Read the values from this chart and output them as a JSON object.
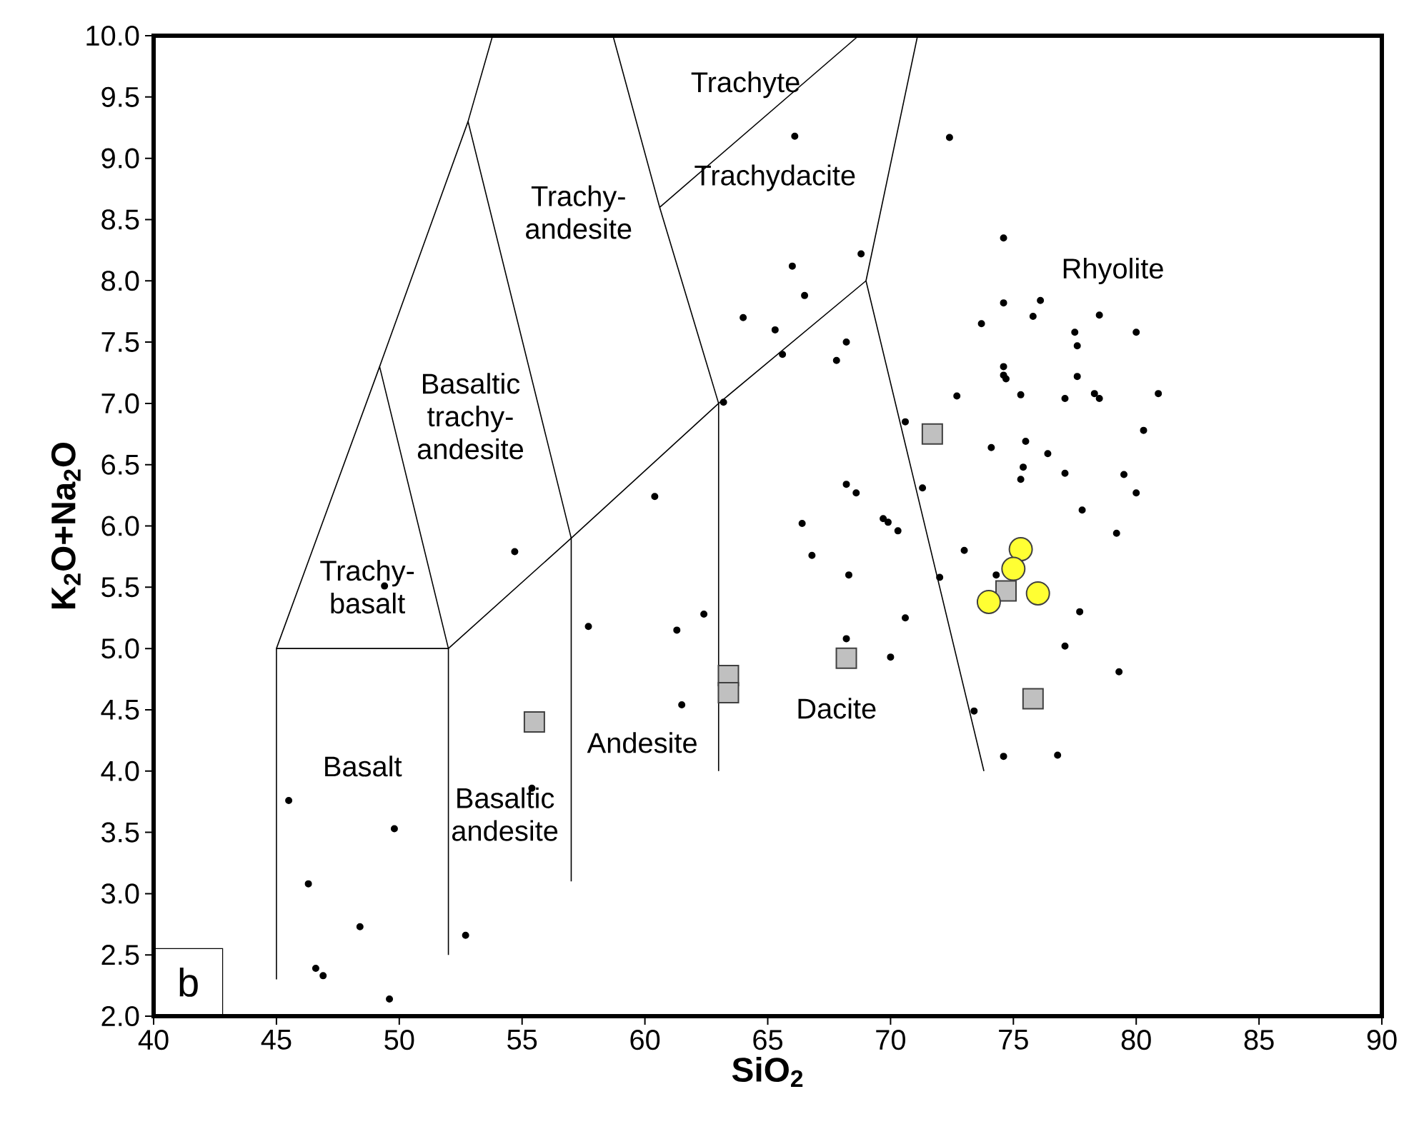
{
  "chart_data": {
    "type": "scatter",
    "xlabel": "SiO$_{2}$",
    "ylabel": "K$_{2}$O+Na$_{2}$O",
    "xlim": [
      40,
      90
    ],
    "ylim": [
      2,
      10
    ],
    "xticks": [
      40,
      45,
      50,
      55,
      60,
      65,
      70,
      75,
      80,
      85,
      90
    ],
    "yticks": [
      {
        "value": 2,
        "label": "2.0"
      },
      {
        "value": 2.5,
        "label": "2.5"
      },
      {
        "value": 3,
        "label": "3.0"
      },
      {
        "value": 3.5,
        "label": "3.5"
      },
      {
        "value": 4,
        "label": "4.0"
      },
      {
        "value": 4.5,
        "label": "4.5"
      },
      {
        "value": 5,
        "label": "5.0"
      },
      {
        "value": 5.5,
        "label": "5.5"
      },
      {
        "value": 6,
        "label": "6.0"
      },
      {
        "value": 6.5,
        "label": "6.5"
      },
      {
        "value": 7,
        "label": "7.0"
      },
      {
        "value": 7.5,
        "label": "7.5"
      },
      {
        "value": 8,
        "label": "8.0"
      },
      {
        "value": 8.5,
        "label": "8.5"
      },
      {
        "value": 9,
        "label": "9.0"
      },
      {
        "value": 9.5,
        "label": "9.5"
      },
      {
        "value": 10,
        "label": "10.0"
      }
    ],
    "grid": false,
    "series": [
      {
        "type": "line",
        "color": "#000000",
        "marker": "none",
        "line_style": "solid",
        "x": [
          45,
          45,
          52,
          52
        ],
        "values": [
          2.3,
          5,
          5,
          2.5
        ]
      },
      {
        "type": "line",
        "color": "#000000",
        "marker": "none",
        "line_style": "solid",
        "x": [
          45,
          49.2,
          52.8,
          53.8
        ],
        "values": [
          5,
          7.3,
          9.3,
          10
        ]
      },
      {
        "type": "line",
        "color": "#000000",
        "marker": "none",
        "line_style": "solid",
        "x": [
          49.2,
          52,
          57,
          63,
          69,
          73.8
        ],
        "values": [
          7.3,
          5,
          5.9,
          7,
          8,
          4
        ]
      },
      {
        "type": "line",
        "color": "#000000",
        "marker": "none",
        "line_style": "solid",
        "x": [
          52.8,
          57,
          57
        ],
        "values": [
          9.3,
          5.9,
          3.1
        ]
      },
      {
        "type": "line",
        "color": "#000000",
        "marker": "none",
        "line_style": "solid",
        "x": [
          58.7,
          60.6,
          63,
          63
        ],
        "values": [
          10,
          8.6,
          7,
          4
        ]
      },
      {
        "type": "line",
        "color": "#000000",
        "marker": "none",
        "line_style": "solid",
        "x": [
          60.6,
          68.7
        ],
        "values": [
          8.6,
          10
        ]
      },
      {
        "type": "line",
        "color": "#000000",
        "marker": "none",
        "line_style": "solid",
        "x": [
          71.1,
          69
        ],
        "values": [
          10,
          8
        ]
      },
      {
        "color": "#000000",
        "marker": "circle",
        "x": [
          64.0,
          63.2,
          60.4,
          66.1,
          72.4,
          74.6,
          68.8,
          66.0,
          66.5,
          74.6,
          76.1,
          75.8,
          78.5,
          73.7,
          65.3,
          77.5,
          80.0,
          77.6,
          68.2,
          65.6,
          67.8,
          74.6,
          74.6,
          74.7,
          77.6,
          75.3,
          77.1,
          78.3,
          78.5,
          80.9,
          72.7,
          70.6,
          80.3,
          74.1,
          75.5,
          76.4,
          75.4,
          75.3,
          77.1,
          79.5,
          80.0,
          77.8,
          71.3,
          68.2,
          68.6,
          66.4,
          69.7,
          69.9,
          70.3,
          79.2,
          66.8,
          73.0,
          68.3,
          72.0,
          74.3,
          77.7,
          70.6,
          68.2,
          70.0,
          77.1,
          79.3,
          73.4,
          74.6,
          76.8,
          54.7,
          49.4,
          57.7,
          61.3,
          62.4,
          61.5,
          45.5,
          49.8,
          46.3,
          48.4,
          52.7,
          46.6,
          46.9,
          49.6,
          55.4
        ],
        "values": [
          7.7,
          7.01,
          6.24,
          9.18,
          9.17,
          8.35,
          8.22,
          8.12,
          7.88,
          7.82,
          7.84,
          7.71,
          7.72,
          7.65,
          7.6,
          7.58,
          7.58,
          7.47,
          7.5,
          7.4,
          7.35,
          7.3,
          7.23,
          7.2,
          7.22,
          7.07,
          7.04,
          7.08,
          7.04,
          7.08,
          7.06,
          6.85,
          6.78,
          6.64,
          6.69,
          6.59,
          6.48,
          6.38,
          6.43,
          6.42,
          6.27,
          6.13,
          6.31,
          6.34,
          6.27,
          6.02,
          6.06,
          6.03,
          5.96,
          5.94,
          5.76,
          5.8,
          5.6,
          5.58,
          5.6,
          5.3,
          5.25,
          5.08,
          4.93,
          5.02,
          4.81,
          4.49,
          4.12,
          4.13,
          5.79,
          5.51,
          5.18,
          5.15,
          5.28,
          4.54,
          3.76,
          3.53,
          3.08,
          2.73,
          2.66,
          2.39,
          2.33,
          2.14,
          3.86
        ]
      },
      {
        "color": "#c0c0c0",
        "marker": "square",
        "x": [
          74.7,
          68.2,
          75.8,
          71.7,
          55.5,
          63.4,
          63.4
        ],
        "values": [
          5.47,
          4.92,
          4.59,
          6.75,
          4.4,
          4.78,
          4.64
        ]
      },
      {
        "color": "#ffff33",
        "marker": "circle",
        "x": [
          75.3,
          75.0,
          74.0,
          76.0
        ],
        "values": [
          5.81,
          5.65,
          5.38,
          5.45
        ]
      }
    ],
    "annotations": [
      "Trachyte",
      "Trachy- andesite",
      "Trachydacite",
      "Rhyolite",
      "Basaltic trachy- andesite",
      "Trachy- basalt",
      "Basalt",
      "Basaltic andesite",
      "Andesite",
      "Dacite",
      "b"
    ]
  }
}
